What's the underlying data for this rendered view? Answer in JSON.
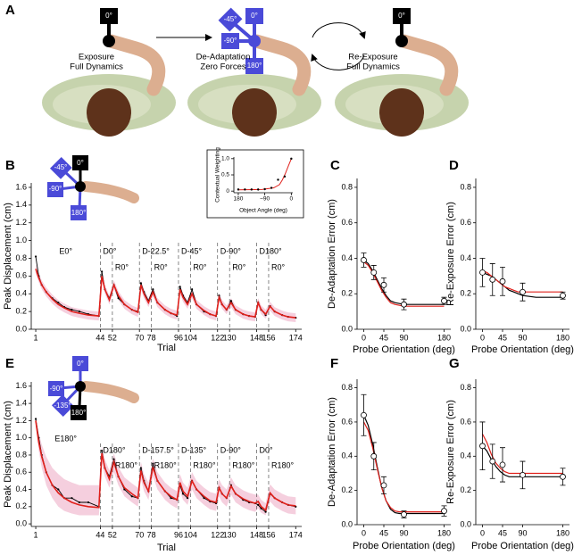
{
  "panel_a": {
    "label": "A",
    "stages": [
      {
        "title": "Exposure",
        "subtitle": "Full Dynamics",
        "angles": [
          "0°"
        ]
      },
      {
        "title": "De-Adaptation",
        "subtitle": "Zero Forces",
        "angles": [
          "0°",
          "-45°",
          "-90°",
          "180°"
        ]
      },
      {
        "title": "Re-Exposure",
        "subtitle": "Full Dynamics",
        "angles": [
          "0°"
        ]
      }
    ]
  },
  "chart_data": [
    {
      "type": "line",
      "panel": "B",
      "icon_labels": [
        "0°",
        "-45°",
        "-90°",
        "180°"
      ],
      "xlabel": "Trial",
      "ylabel": "Peak Displacement (cm)",
      "xlim": [
        -2,
        178
      ],
      "xticks": [
        1,
        44,
        52,
        70,
        78,
        96,
        104,
        122,
        130,
        148,
        156,
        174
      ],
      "ylim": [
        0,
        1.65
      ],
      "yticks": [
        {
          "value": 0,
          "label": "0.0"
        },
        0.2,
        0.4,
        0.6,
        0.8,
        {
          "value": 1,
          "label": "1.0"
        },
        1.2,
        1.4,
        1.6
      ],
      "boundaries": [
        44,
        52,
        70,
        78,
        96,
        104,
        122,
        130,
        148,
        156
      ],
      "block_labels": [
        "E0°",
        "D0°",
        "R0°",
        "D-22.5°",
        "R0°",
        "D-45°",
        "R0°",
        "D-90°",
        "R0°",
        "D180°",
        "R0°"
      ],
      "x": [
        1,
        3,
        5,
        8,
        12,
        16,
        20,
        25,
        30,
        36,
        43,
        45,
        47,
        50,
        53,
        56,
        60,
        65,
        69,
        71,
        73,
        76,
        79,
        82,
        87,
        91,
        95,
        97,
        99,
        102,
        105,
        108,
        113,
        117,
        121,
        123,
        125,
        128,
        131,
        134,
        139,
        143,
        147,
        149,
        151,
        154,
        157,
        160,
        165,
        169,
        174
      ],
      "band": {
        "color": "#f3c3d6",
        "low": [
          0.63,
          0.53,
          0.45,
          0.37,
          0.29,
          0.23,
          0.19,
          0.15,
          0.13,
          0.11,
          0.1,
          0.55,
          0.4,
          0.28,
          0.45,
          0.33,
          0.23,
          0.17,
          0.14,
          0.45,
          0.35,
          0.25,
          0.37,
          0.25,
          0.17,
          0.13,
          0.11,
          0.4,
          0.31,
          0.23,
          0.35,
          0.23,
          0.16,
          0.12,
          0.1,
          0.31,
          0.23,
          0.17,
          0.25,
          0.17,
          0.12,
          0.1,
          0.09,
          0.25,
          0.17,
          0.12,
          0.21,
          0.15,
          0.11,
          0.09,
          0.08
        ],
        "high": [
          0.73,
          0.63,
          0.55,
          0.47,
          0.39,
          0.33,
          0.29,
          0.25,
          0.23,
          0.21,
          0.2,
          0.65,
          0.5,
          0.38,
          0.55,
          0.43,
          0.33,
          0.27,
          0.24,
          0.55,
          0.45,
          0.35,
          0.47,
          0.35,
          0.27,
          0.23,
          0.21,
          0.5,
          0.41,
          0.33,
          0.45,
          0.33,
          0.26,
          0.22,
          0.2,
          0.41,
          0.33,
          0.27,
          0.35,
          0.27,
          0.22,
          0.2,
          0.19,
          0.35,
          0.27,
          0.22,
          0.31,
          0.25,
          0.21,
          0.19,
          0.18
        ]
      },
      "series": [
        {
          "color": "#000000",
          "markers": true,
          "values": [
            0.82,
            0.6,
            0.5,
            0.42,
            0.35,
            0.3,
            0.25,
            0.22,
            0.2,
            0.17,
            0.15,
            0.65,
            0.45,
            0.35,
            0.5,
            0.35,
            0.28,
            0.22,
            0.2,
            0.52,
            0.42,
            0.32,
            0.45,
            0.3,
            0.22,
            0.18,
            0.15,
            0.48,
            0.38,
            0.3,
            0.45,
            0.28,
            0.2,
            0.17,
            0.15,
            0.38,
            0.28,
            0.22,
            0.32,
            0.22,
            0.17,
            0.15,
            0.14,
            0.3,
            0.22,
            0.16,
            0.26,
            0.2,
            0.16,
            0.14,
            0.13
          ]
        },
        {
          "color": "#e0201b",
          "markers": false,
          "values": [
            0.68,
            0.58,
            0.5,
            0.42,
            0.34,
            0.28,
            0.24,
            0.2,
            0.18,
            0.16,
            0.15,
            0.6,
            0.45,
            0.33,
            0.5,
            0.38,
            0.28,
            0.22,
            0.19,
            0.5,
            0.4,
            0.3,
            0.42,
            0.3,
            0.22,
            0.18,
            0.16,
            0.45,
            0.36,
            0.28,
            0.4,
            0.28,
            0.21,
            0.17,
            0.15,
            0.36,
            0.28,
            0.22,
            0.3,
            0.22,
            0.17,
            0.15,
            0.14,
            0.3,
            0.22,
            0.17,
            0.26,
            0.2,
            0.16,
            0.14,
            0.13
          ]
        }
      ]
    },
    {
      "type": "scatter",
      "xlabel": "Object Angle (deg)",
      "ylabel": "Contextual Weighting",
      "xlim": [
        -195,
        5
      ],
      "xticks": [
        {
          "value": -180,
          "label": "180"
        },
        {
          "value": -90,
          "label": "−90"
        },
        0
      ],
      "ylim": [
        -0.05,
        1.05
      ],
      "yticks": [
        0,
        0.5,
        {
          "value": 1,
          "label": "1.0"
        }
      ],
      "points": {
        "color": "#000000",
        "x": [
          -180,
          -157.5,
          -135,
          -112.5,
          -90,
          -67.5,
          -45,
          -22.5,
          0
        ],
        "values": [
          0.05,
          0.05,
          0.05,
          0.05,
          0.06,
          0.1,
          0.35,
          0.45,
          1.0
        ]
      },
      "fit": {
        "color": "#e0201b",
        "x": [
          -180,
          -100,
          -60,
          -40,
          -30,
          -20,
          -10,
          0
        ],
        "values": [
          0.04,
          0.05,
          0.1,
          0.2,
          0.35,
          0.55,
          0.78,
          1.0
        ]
      }
    },
    {
      "type": "errorbar",
      "panel": "C",
      "xlabel": "Probe Orientation (deg)",
      "ylabel": "De-Adaptation Error (cm)",
      "xlim": [
        -15,
        195
      ],
      "xticks": [
        0,
        45,
        90,
        180
      ],
      "ylim": [
        0,
        0.85
      ],
      "yticks": [
        {
          "value": 0,
          "label": "0.0"
        },
        0.2,
        0.4,
        0.6,
        0.8
      ],
      "points": {
        "color": "#000000",
        "x": [
          0,
          22.5,
          45,
          90,
          180
        ],
        "values": [
          0.39,
          0.32,
          0.25,
          0.14,
          0.16
        ],
        "errors": [
          0.04,
          0.04,
          0.04,
          0.03,
          0.02
        ]
      },
      "fit_x": [
        0,
        10,
        20,
        30,
        40,
        50,
        60,
        70,
        80,
        90,
        120,
        150,
        180
      ],
      "fits": [
        {
          "color": "#000000",
          "values": [
            0.39,
            0.37,
            0.33,
            0.28,
            0.23,
            0.19,
            0.16,
            0.15,
            0.145,
            0.14,
            0.14,
            0.14,
            0.14
          ]
        },
        {
          "color": "#e0201b",
          "values": [
            0.38,
            0.36,
            0.32,
            0.27,
            0.22,
            0.18,
            0.15,
            0.14,
            0.135,
            0.13,
            0.13,
            0.13,
            0.13
          ]
        }
      ]
    },
    {
      "type": "errorbar",
      "panel": "D",
      "xlabel": "Probe Orientation (deg)",
      "ylabel": "Re-Exposure Error (cm)",
      "xlim": [
        -15,
        195
      ],
      "xticks": [
        0,
        45,
        90,
        180
      ],
      "ylim": [
        0,
        0.85
      ],
      "yticks": [
        {
          "value": 0,
          "label": "0.0"
        },
        0.2,
        0.4,
        0.6,
        0.8
      ],
      "points": {
        "color": "#000000",
        "x": [
          0,
          22.5,
          45,
          90,
          180
        ],
        "values": [
          0.32,
          0.28,
          0.27,
          0.21,
          0.19
        ],
        "errors": [
          0.08,
          0.09,
          0.08,
          0.05,
          0.02
        ]
      },
      "fit_x": [
        0,
        10,
        20,
        30,
        40,
        50,
        60,
        70,
        80,
        90,
        120,
        150,
        180
      ],
      "fits": [
        {
          "color": "#000000",
          "values": [
            0.32,
            0.31,
            0.3,
            0.28,
            0.26,
            0.24,
            0.22,
            0.21,
            0.2,
            0.19,
            0.18,
            0.18,
            0.18
          ]
        },
        {
          "color": "#e0201b",
          "values": [
            0.33,
            0.32,
            0.3,
            0.28,
            0.26,
            0.24,
            0.23,
            0.22,
            0.21,
            0.21,
            0.21,
            0.21,
            0.21
          ]
        }
      ]
    },
    {
      "type": "line",
      "panel": "E",
      "icon_labels": [
        "0°",
        "-90°",
        "-135°",
        "180°"
      ],
      "xlabel": "Trial",
      "ylabel": "Peak Displacement (cm)",
      "xlim": [
        -2,
        178
      ],
      "xticks": [
        1,
        44,
        52,
        70,
        78,
        96,
        104,
        122,
        130,
        148,
        156,
        174
      ],
      "ylim": [
        -0.03,
        1.65
      ],
      "yticks": [
        {
          "value": 0,
          "label": "0.0"
        },
        0.2,
        0.4,
        0.6,
        0.8,
        {
          "value": 1,
          "label": "1.0"
        },
        1.2,
        1.4,
        1.6
      ],
      "boundaries": [
        44,
        52,
        70,
        78,
        96,
        104,
        122,
        130,
        148,
        156
      ],
      "block_labels": [
        "E180°",
        "D180°",
        "R180°",
        "D-157.5°",
        "R180°",
        "D-135°",
        "R180°",
        "D-90°",
        "R180°",
        "D0°",
        "R180°"
      ],
      "x": [
        1,
        3,
        5,
        8,
        12,
        16,
        20,
        25,
        30,
        36,
        43,
        45,
        47,
        50,
        53,
        56,
        60,
        65,
        69,
        71,
        73,
        76,
        79,
        82,
        87,
        91,
        95,
        97,
        99,
        102,
        105,
        108,
        113,
        117,
        121,
        123,
        125,
        128,
        131,
        134,
        139,
        143,
        147,
        149,
        151,
        154,
        157,
        160,
        165,
        169,
        174
      ],
      "band": {
        "color": "#f3c3d6",
        "low": [
          1.15,
          0.85,
          0.65,
          0.45,
          0.3,
          0.2,
          0.15,
          0.12,
          0.1,
          0.1,
          0.1,
          0.7,
          0.55,
          0.42,
          0.6,
          0.45,
          0.32,
          0.25,
          0.2,
          0.52,
          0.38,
          0.28,
          0.55,
          0.4,
          0.28,
          0.22,
          0.18,
          0.38,
          0.28,
          0.22,
          0.4,
          0.3,
          0.22,
          0.17,
          0.15,
          0.32,
          0.25,
          0.2,
          0.34,
          0.25,
          0.19,
          0.16,
          0.14,
          0.18,
          0.13,
          0.1,
          0.26,
          0.2,
          0.15,
          0.12,
          0.11
        ],
        "high": [
          1.25,
          1.05,
          0.92,
          0.78,
          0.65,
          0.58,
          0.52,
          0.48,
          0.45,
          0.45,
          0.45,
          0.9,
          0.75,
          0.62,
          0.82,
          0.66,
          0.54,
          0.47,
          0.42,
          0.72,
          0.58,
          0.48,
          0.76,
          0.6,
          0.48,
          0.42,
          0.38,
          0.58,
          0.48,
          0.42,
          0.6,
          0.5,
          0.42,
          0.37,
          0.35,
          0.52,
          0.45,
          0.4,
          0.54,
          0.45,
          0.39,
          0.36,
          0.34,
          0.34,
          0.28,
          0.24,
          0.46,
          0.4,
          0.35,
          0.32,
          0.31
        ]
      },
      "series": [
        {
          "color": "#000000",
          "markers": true,
          "values": [
            1.22,
            1.0,
            0.8,
            0.6,
            0.45,
            0.4,
            0.3,
            0.3,
            0.25,
            0.25,
            0.2,
            0.85,
            0.65,
            0.55,
            0.75,
            0.55,
            0.4,
            0.32,
            0.3,
            0.65,
            0.5,
            0.38,
            0.7,
            0.5,
            0.38,
            0.3,
            0.28,
            0.45,
            0.35,
            0.3,
            0.5,
            0.4,
            0.3,
            0.26,
            0.24,
            0.42,
            0.35,
            0.3,
            0.45,
            0.35,
            0.28,
            0.25,
            0.24,
            0.22,
            0.18,
            0.14,
            0.35,
            0.3,
            0.25,
            0.22,
            0.2
          ]
        },
        {
          "color": "#e0201b",
          "markers": false,
          "values": [
            1.2,
            0.95,
            0.78,
            0.6,
            0.45,
            0.36,
            0.3,
            0.25,
            0.22,
            0.2,
            0.19,
            0.82,
            0.65,
            0.52,
            0.72,
            0.55,
            0.42,
            0.35,
            0.3,
            0.62,
            0.48,
            0.38,
            0.66,
            0.5,
            0.38,
            0.32,
            0.28,
            0.48,
            0.38,
            0.32,
            0.5,
            0.4,
            0.32,
            0.27,
            0.25,
            0.42,
            0.35,
            0.3,
            0.44,
            0.35,
            0.29,
            0.26,
            0.24,
            0.26,
            0.2,
            0.16,
            0.36,
            0.3,
            0.25,
            0.22,
            0.21
          ]
        }
      ]
    },
    {
      "type": "errorbar",
      "panel": "F",
      "xlabel": "Probe Orientation (deg)",
      "ylabel": "De-Adaptation Error (cm)",
      "xlim": [
        -15,
        195
      ],
      "xticks": [
        0,
        45,
        90,
        180
      ],
      "ylim": [
        0,
        0.85
      ],
      "yticks": [
        {
          "value": 0,
          "label": "0.0"
        },
        0.2,
        0.4,
        0.6,
        0.8
      ],
      "points": {
        "color": "#000000",
        "x": [
          0,
          22.5,
          45,
          90,
          180
        ],
        "values": [
          0.64,
          0.4,
          0.23,
          0.06,
          0.08
        ],
        "errors": [
          0.12,
          0.08,
          0.05,
          0.02,
          0.03
        ]
      },
      "fit_x": [
        0,
        10,
        20,
        30,
        40,
        50,
        60,
        70,
        80,
        90,
        120,
        150,
        180
      ],
      "fits": [
        {
          "color": "#000000",
          "values": [
            0.64,
            0.58,
            0.47,
            0.34,
            0.22,
            0.14,
            0.09,
            0.07,
            0.065,
            0.065,
            0.065,
            0.065,
            0.065
          ]
        },
        {
          "color": "#e0201b",
          "values": [
            0.6,
            0.55,
            0.45,
            0.33,
            0.22,
            0.14,
            0.1,
            0.08,
            0.075,
            0.075,
            0.075,
            0.075,
            0.075
          ]
        }
      ]
    },
    {
      "type": "errorbar",
      "panel": "G",
      "xlabel": "Probe Orientation (deg)",
      "ylabel": "Re-Exposure Error (cm)",
      "xlim": [
        -15,
        195
      ],
      "xticks": [
        0,
        45,
        90,
        180
      ],
      "ylim": [
        0,
        0.85
      ],
      "yticks": [
        {
          "value": 0,
          "label": "0.0"
        },
        0.2,
        0.4,
        0.6,
        0.8
      ],
      "points": {
        "color": "#000000",
        "x": [
          0,
          22.5,
          45,
          90,
          180
        ],
        "values": [
          0.46,
          0.37,
          0.35,
          0.29,
          0.28
        ],
        "errors": [
          0.14,
          0.1,
          0.1,
          0.08,
          0.05
        ]
      },
      "fit_x": [
        0,
        10,
        20,
        30,
        40,
        50,
        60,
        70,
        80,
        90,
        120,
        150,
        180
      ],
      "fits": [
        {
          "color": "#000000",
          "values": [
            0.46,
            0.43,
            0.38,
            0.34,
            0.31,
            0.29,
            0.28,
            0.28,
            0.28,
            0.28,
            0.28,
            0.28,
            0.28
          ]
        },
        {
          "color": "#e0201b",
          "values": [
            0.53,
            0.48,
            0.41,
            0.36,
            0.33,
            0.31,
            0.3,
            0.3,
            0.3,
            0.3,
            0.3,
            0.3,
            0.3
          ]
        }
      ]
    }
  ]
}
